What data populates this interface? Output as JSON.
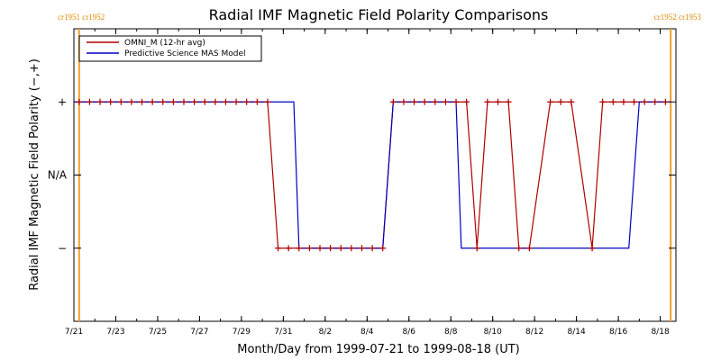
{
  "chart_data": {
    "type": "line",
    "title": "Radial IMF Magnetic Field Polarity Comparisons",
    "xlabel": "Month/Day from 1999-07-21 to 1999-08-18 (UT)",
    "ylabel": "Radial IMF Magnetic Field Polarity (−,+)",
    "x_unit": "date",
    "xlim": [
      "1999-07-21",
      "1999-08-18T18:00"
    ],
    "ylim": [
      -2,
      2
    ],
    "yticks": [
      {
        "value": 1,
        "label": "+"
      },
      {
        "value": 0,
        "label": "N/A"
      },
      {
        "value": -1,
        "label": "−"
      }
    ],
    "xticks": [
      "7/21",
      "7/23",
      "7/25",
      "7/27",
      "7/29",
      "7/31",
      "8/2",
      "8/4",
      "8/6",
      "8/8",
      "8/10",
      "8/12",
      "8/14",
      "8/16",
      "8/18"
    ],
    "xtick_dates": [
      "1999-07-21",
      "1999-07-23",
      "1999-07-25",
      "1999-07-27",
      "1999-07-29",
      "1999-07-31",
      "1999-08-02",
      "1999-08-04",
      "1999-08-06",
      "1999-08-08",
      "1999-08-10",
      "1999-08-12",
      "1999-08-14",
      "1999-08-16",
      "1999-08-18"
    ],
    "grid": false,
    "legend_position": "top-left",
    "series": [
      {
        "name": "OMNI_M (12-hr avg)",
        "color": "#b00000",
        "marker": "+",
        "points": [
          [
            "1999-07-21T06:00",
            1
          ],
          [
            "1999-07-21T18:00",
            1
          ],
          [
            "1999-07-22T06:00",
            1
          ],
          [
            "1999-07-22T18:00",
            1
          ],
          [
            "1999-07-23T06:00",
            1
          ],
          [
            "1999-07-23T18:00",
            1
          ],
          [
            "1999-07-24T06:00",
            1
          ],
          [
            "1999-07-24T18:00",
            1
          ],
          [
            "1999-07-25T06:00",
            1
          ],
          [
            "1999-07-25T18:00",
            1
          ],
          [
            "1999-07-26T06:00",
            1
          ],
          [
            "1999-07-26T18:00",
            1
          ],
          [
            "1999-07-27T06:00",
            1
          ],
          [
            "1999-07-27T18:00",
            1
          ],
          [
            "1999-07-28T06:00",
            1
          ],
          [
            "1999-07-28T18:00",
            1
          ],
          [
            "1999-07-29T06:00",
            1
          ],
          [
            "1999-07-29T18:00",
            1
          ],
          [
            "1999-07-30T06:00",
            1
          ],
          [
            "1999-07-30T18:00",
            -1
          ],
          [
            "1999-07-31T06:00",
            -1
          ],
          [
            "1999-07-31T18:00",
            -1
          ],
          [
            "1999-08-01T06:00",
            -1
          ],
          [
            "1999-08-01T18:00",
            -1
          ],
          [
            "1999-08-02T06:00",
            -1
          ],
          [
            "1999-08-02T18:00",
            -1
          ],
          [
            "1999-08-03T06:00",
            -1
          ],
          [
            "1999-08-03T18:00",
            -1
          ],
          [
            "1999-08-04T06:00",
            -1
          ],
          [
            "1999-08-04T18:00",
            -1
          ],
          [
            "1999-08-05T06:00",
            1
          ],
          [
            "1999-08-05T18:00",
            1
          ],
          [
            "1999-08-06T06:00",
            1
          ],
          [
            "1999-08-06T18:00",
            1
          ],
          [
            "1999-08-07T06:00",
            1
          ],
          [
            "1999-08-07T18:00",
            1
          ],
          [
            "1999-08-08T06:00",
            1
          ],
          [
            "1999-08-08T18:00",
            1
          ],
          [
            "1999-08-09T06:00",
            -1
          ],
          [
            "1999-08-09T18:00",
            1
          ],
          [
            "1999-08-10T06:00",
            1
          ],
          [
            "1999-08-10T18:00",
            1
          ],
          [
            "1999-08-11T06:00",
            -1
          ],
          [
            "1999-08-11T18:00",
            -1
          ],
          [
            "1999-08-12T18:00",
            1
          ],
          [
            "1999-08-13T06:00",
            1
          ],
          [
            "1999-08-13T18:00",
            1
          ],
          [
            "1999-08-14T18:00",
            -1
          ],
          [
            "1999-08-15T06:00",
            1
          ],
          [
            "1999-08-15T18:00",
            1
          ],
          [
            "1999-08-16T06:00",
            1
          ],
          [
            "1999-08-16T18:00",
            1
          ],
          [
            "1999-08-17T06:00",
            1
          ],
          [
            "1999-08-17T18:00",
            1
          ],
          [
            "1999-08-18T06:00",
            1
          ]
        ]
      },
      {
        "name": "Predictive Science MAS Model",
        "color": "#0000c0",
        "points": [
          [
            "1999-07-21T00:00",
            1
          ],
          [
            "1999-07-31T12:00",
            1
          ],
          [
            "1999-07-31T18:00",
            -1
          ],
          [
            "1999-08-04T18:00",
            -1
          ],
          [
            "1999-08-05T06:00",
            1
          ],
          [
            "1999-08-08T06:00",
            1
          ],
          [
            "1999-08-08T12:00",
            -1
          ],
          [
            "1999-08-16T12:00",
            -1
          ],
          [
            "1999-08-17T00:00",
            1
          ],
          [
            "1999-08-18T12:00",
            1
          ]
        ]
      }
    ],
    "vlines": [
      {
        "label": "cr1951 cr1952",
        "date": "1999-07-21T06:00",
        "label_side": "left",
        "color": "#f0a030"
      },
      {
        "label": "cr1952 cr1953",
        "date": "1999-08-18T12:00",
        "label_side": "right",
        "color": "#f0a030"
      }
    ]
  }
}
